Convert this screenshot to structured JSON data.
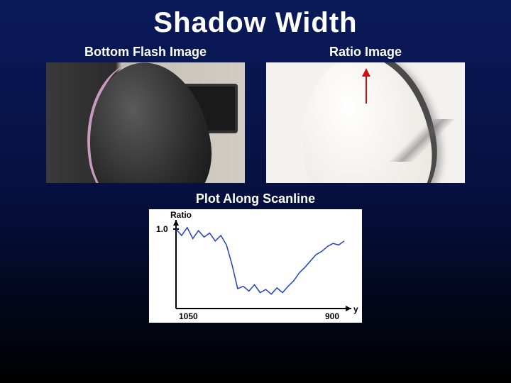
{
  "title": "Shadow Width",
  "left_panel": {
    "label": "Bottom Flash Image"
  },
  "right_panel": {
    "label": "Ratio Image"
  },
  "plot": {
    "label": "Plot Along Scanline",
    "type": "line",
    "ylabel": "Ratio",
    "xlabel": "y",
    "x_tick_left": "1050",
    "x_tick_right": "900",
    "y_tick_top": "1.0",
    "xlim": [
      1050,
      900
    ],
    "ylim": [
      0,
      1.1
    ],
    "line_color": "#2040c0",
    "axis_color": "#000000",
    "background_color": "#ffffff",
    "label_fontsize": 12,
    "data": {
      "x": [
        1050,
        1045,
        1040,
        1035,
        1030,
        1025,
        1020,
        1015,
        1010,
        1005,
        1000,
        995,
        990,
        985,
        980,
        975,
        970,
        965,
        960,
        955,
        950,
        945,
        940,
        935,
        930,
        925,
        920,
        915,
        910,
        905,
        900
      ],
      "y": [
        1.0,
        0.92,
        1.02,
        0.88,
        0.98,
        0.9,
        0.95,
        0.85,
        0.92,
        0.8,
        0.55,
        0.25,
        0.28,
        0.22,
        0.3,
        0.2,
        0.24,
        0.18,
        0.26,
        0.2,
        0.28,
        0.35,
        0.45,
        0.52,
        0.6,
        0.68,
        0.72,
        0.78,
        0.82,
        0.8,
        0.85
      ]
    }
  }
}
